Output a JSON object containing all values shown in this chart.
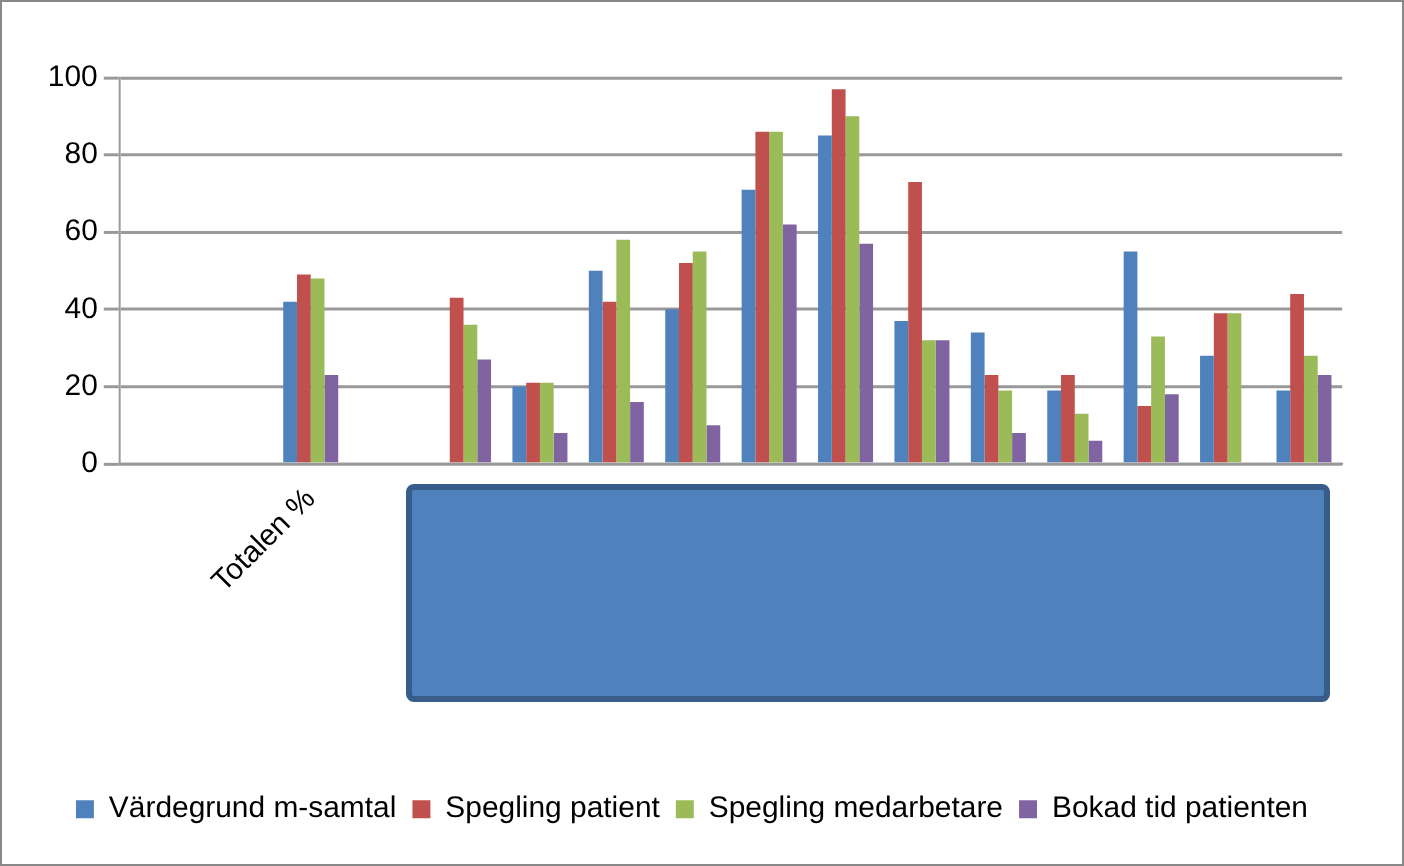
{
  "chart_data": {
    "type": "bar",
    "categories": [
      null,
      null,
      "Totalen %",
      null,
      null,
      null,
      null,
      null,
      null,
      null,
      null,
      null,
      null,
      null,
      null,
      null
    ],
    "series": [
      {
        "name": "Värdegrund m-samtal",
        "color": "#4f81bd",
        "values": [
          null,
          null,
          42,
          null,
          0,
          20,
          50,
          40,
          71,
          85,
          37,
          34,
          19,
          55,
          28,
          19
        ]
      },
      {
        "name": "Spegling patient",
        "color": "#c0504d",
        "values": [
          null,
          null,
          49,
          null,
          43,
          21,
          42,
          52,
          86,
          97,
          73,
          23,
          23,
          15,
          39,
          44
        ]
      },
      {
        "name": "Spegling medarbetare",
        "color": "#9bbb59",
        "values": [
          null,
          null,
          48,
          null,
          36,
          21,
          58,
          55,
          86,
          90,
          32,
          19,
          13,
          33,
          39,
          28
        ]
      },
      {
        "name": "Bokad tid patienten",
        "color": "#8064a2",
        "values": [
          null,
          null,
          23,
          null,
          27,
          8,
          16,
          10,
          62,
          57,
          32,
          8,
          6,
          18,
          0,
          23
        ]
      }
    ],
    "ylim": [
      0,
      100
    ],
    "yticks": [
      0,
      20,
      40,
      60,
      80,
      100
    ],
    "grid": "y",
    "legend": "bottom"
  }
}
